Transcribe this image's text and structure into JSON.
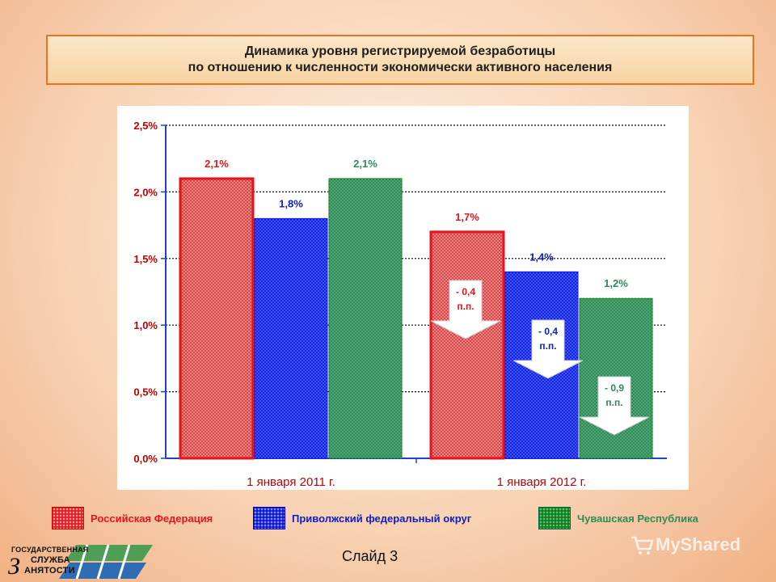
{
  "title": {
    "line1": "Динамика уровня регистрируемой безработицы",
    "line2": "по отношению к  численности экономически активного населения"
  },
  "colors": {
    "rf": "#e8141b",
    "pfo": "#0a14e6",
    "chr": "#0a7d1e",
    "rf_label": "#e8141b",
    "pfo_label": "#1020c0",
    "chr_label": "#2e8b57",
    "accent_border": "#e8731d"
  },
  "chart_data": {
    "type": "bar",
    "categories": [
      "1 января 2011 г.",
      "1 января 2012 г."
    ],
    "series": [
      {
        "name": "Российская Федерация",
        "values": [
          2.1,
          1.7
        ],
        "labels": [
          "2,1%",
          "1,7%"
        ]
      },
      {
        "name": "Приволжский федеральный округ",
        "values": [
          1.8,
          1.4
        ],
        "labels": [
          "1,8%",
          "1,4%"
        ]
      },
      {
        "name": "Чувашская Республика",
        "values": [
          2.1,
          1.2
        ],
        "labels": [
          "2,1%",
          "1,2%"
        ]
      }
    ],
    "ylim": [
      0,
      2.5
    ],
    "yticks": [
      {
        "v": 0.0,
        "label": "0,0%"
      },
      {
        "v": 0.5,
        "label": "0,5%"
      },
      {
        "v": 1.0,
        "label": "1,0%"
      },
      {
        "v": 1.5,
        "label": "1,5%"
      },
      {
        "v": 2.0,
        "label": "2,0%"
      },
      {
        "v": 2.5,
        "label": "2,5%"
      }
    ],
    "grid": true,
    "legend_position": "bottom",
    "annotations": [
      {
        "series": 0,
        "category": 1,
        "line1": "- 0,4",
        "line2": "п.п."
      },
      {
        "series": 1,
        "category": 1,
        "line1": "- 0,4",
        "line2": "п.п."
      },
      {
        "series": 2,
        "category": 1,
        "line1": "- 0,9",
        "line2": "п.п."
      }
    ]
  },
  "legend": {
    "rf": "Российская Федерация",
    "pfo": "Приволжский федеральный округ",
    "chr": "Чувашская Республика"
  },
  "slide_label": "Слайд 3",
  "logo": {
    "line1": "ГОСУДАРСТВЕННАЯ",
    "line2": "СЛУЖБА",
    "line3": "АНЯТОСТИ",
    "letter": "З"
  },
  "watermark": "MyShared"
}
